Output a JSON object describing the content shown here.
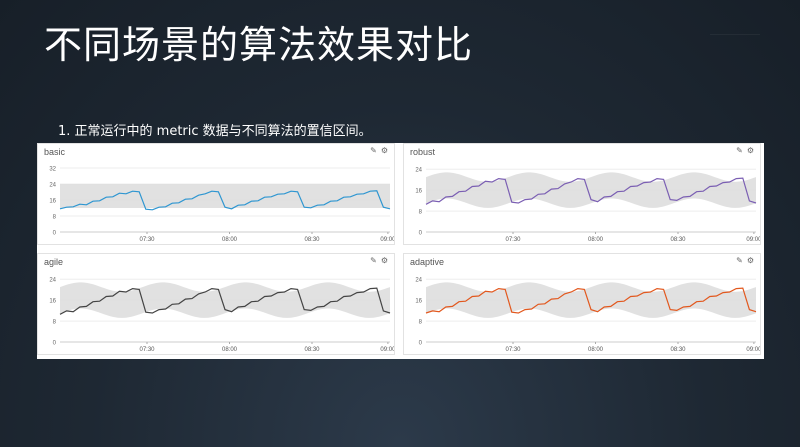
{
  "slide": {
    "title": "不同场景的算法效果对比",
    "subtitle": "1. 正常运行中的 metric 数据与不同算法的置信区间。"
  },
  "panels": [
    {
      "title": "basic",
      "pencil_icon": "pencil-icon",
      "gear_icon": "gear-icon"
    },
    {
      "title": "robust",
      "pencil_icon": "pencil-icon",
      "gear_icon": "gear-icon"
    },
    {
      "title": "agile",
      "pencil_icon": "pencil-icon",
      "gear_icon": "gear-icon"
    },
    {
      "title": "adaptive",
      "pencil_icon": "pencil-icon",
      "gear_icon": "gear-icon"
    }
  ],
  "chart_data": [
    {
      "type": "line",
      "title": "basic",
      "color": "#2e96d1",
      "x_ticks": [
        "07:30",
        "08:00",
        "08:30",
        "09:00"
      ],
      "y_ticks": [
        0,
        8,
        16,
        24,
        32
      ],
      "ylim": [
        0,
        34
      ],
      "band": {
        "lower": 12,
        "upper": 24,
        "shape": "flat"
      },
      "values": [
        12,
        12,
        13,
        13.5,
        14,
        15,
        16,
        17,
        18,
        19,
        19.5,
        20,
        20.5,
        11,
        11.5,
        12,
        13,
        14,
        15,
        16,
        17,
        18,
        19.5,
        20,
        20.5,
        12,
        12,
        13,
        14,
        15,
        16,
        17,
        18,
        18.5,
        19.5,
        20,
        20.5,
        12,
        12.5,
        13,
        14,
        15,
        16,
        17,
        18,
        18.5,
        19.5,
        20,
        21,
        12,
        12
      ]
    },
    {
      "type": "line",
      "title": "robust",
      "color": "#7b5fb3",
      "x_ticks": [
        "07:30",
        "08:00",
        "08:30",
        "09:00"
      ],
      "y_ticks": [
        0,
        8,
        16,
        24
      ],
      "ylim": [
        0,
        26
      ],
      "band": {
        "lower": 11,
        "upper": 21,
        "shape": "wavy"
      },
      "values": [
        11,
        11.5,
        12,
        13,
        14,
        15,
        16,
        17,
        18,
        19,
        19.5,
        20,
        20.5,
        11,
        11.5,
        12,
        13,
        14,
        15,
        16,
        17,
        18,
        19.5,
        20,
        20.5,
        12,
        12,
        13,
        14,
        15,
        16,
        17,
        18,
        18.5,
        19.5,
        20,
        20.5,
        12,
        12.5,
        13,
        14,
        15,
        16,
        17,
        18,
        18.5,
        19.5,
        20,
        21,
        11.5,
        11.5
      ]
    },
    {
      "type": "line",
      "title": "agile",
      "color": "#444444",
      "x_ticks": [
        "07:30",
        "08:00",
        "08:30",
        "09:00"
      ],
      "y_ticks": [
        0,
        8,
        16,
        24
      ],
      "ylim": [
        0,
        26
      ],
      "band": {
        "lower": 11,
        "upper": 21,
        "shape": "wavy"
      },
      "values": [
        11,
        11.5,
        12,
        13,
        14,
        15,
        16,
        17,
        18,
        19,
        19.5,
        20,
        20.5,
        11,
        11.5,
        12,
        13,
        14,
        15,
        16,
        17,
        18,
        19.5,
        20,
        20.5,
        12,
        12,
        13,
        14,
        15,
        16,
        17,
        18,
        18.5,
        19.5,
        20,
        20.5,
        12,
        12.5,
        13,
        14,
        15,
        16,
        17,
        18,
        18.5,
        19.5,
        20,
        21,
        11.5,
        11.5
      ]
    },
    {
      "type": "line",
      "title": "adaptive",
      "color": "#e2581e",
      "x_ticks": [
        "07:30",
        "08:00",
        "08:30",
        "09:00"
      ],
      "y_ticks": [
        0,
        8,
        16,
        24
      ],
      "ylim": [
        0,
        26
      ],
      "band": {
        "lower": 11,
        "upper": 21,
        "shape": "wavy"
      },
      "values": [
        11.5,
        11.5,
        12,
        13,
        14,
        15,
        16,
        17,
        18,
        19,
        19.5,
        20,
        20.5,
        11,
        11.5,
        12,
        13,
        14,
        15,
        16,
        17,
        18,
        19.5,
        20,
        20.5,
        12,
        12,
        13,
        14,
        15,
        16,
        17,
        18,
        18.5,
        19.5,
        20,
        20.5,
        12,
        12.5,
        13,
        14,
        15,
        16,
        17,
        18,
        18.5,
        19.5,
        20,
        21,
        12,
        12
      ]
    }
  ]
}
